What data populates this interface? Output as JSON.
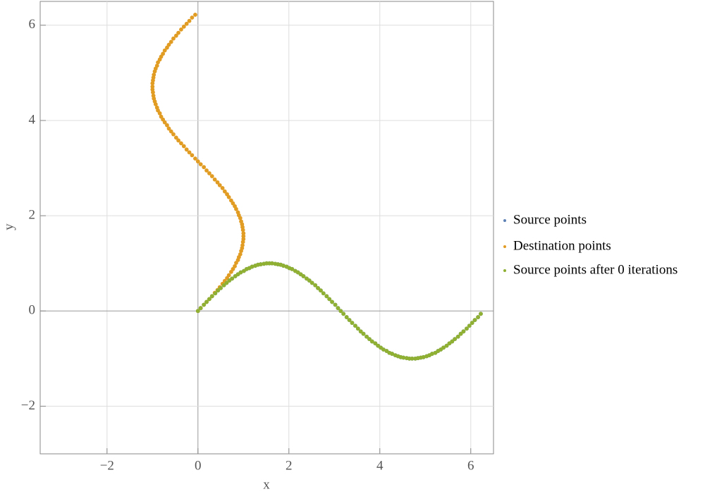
{
  "chart_data": {
    "type": "scatter",
    "xlabel": "x",
    "ylabel": "y",
    "xlim": [
      -3.47,
      6.5
    ],
    "ylim": [
      -3,
      6.5
    ],
    "xticks": [
      {
        "value": -2,
        "label": "−2"
      },
      0,
      2,
      4,
      6
    ],
    "yticks": [
      {
        "value": -2,
        "label": "−2"
      },
      0,
      2,
      4,
      6
    ],
    "grid": true,
    "legend": "right",
    "series": [
      {
        "name": "Source points",
        "color": "#5e81b5",
        "x": [
          0,
          0.06,
          0.13,
          0.19,
          0.25,
          0.31,
          0.38,
          0.44,
          0.5,
          0.57,
          0.63,
          0.69,
          0.75,
          0.82,
          0.88,
          0.94,
          1.01,
          1.07,
          1.13,
          1.19,
          1.26,
          1.32,
          1.38,
          1.45,
          1.51,
          1.57,
          1.63,
          1.7,
          1.76,
          1.82,
          1.88,
          1.95,
          2.01,
          2.07,
          2.14,
          2.2,
          2.26,
          2.32,
          2.39,
          2.45,
          2.51,
          2.58,
          2.64,
          2.7,
          2.76,
          2.83,
          2.89,
          2.95,
          3.02,
          3.08,
          3.14,
          3.2,
          3.27,
          3.33,
          3.39,
          3.46,
          3.52,
          3.58,
          3.64,
          3.71,
          3.77,
          3.83,
          3.9,
          3.96,
          4.02,
          4.08,
          4.15,
          4.21,
          4.27,
          4.34,
          4.4,
          4.46,
          4.52,
          4.59,
          4.65,
          4.71,
          4.78,
          4.84,
          4.9,
          4.96,
          5.03,
          5.09,
          5.15,
          5.22,
          5.28,
          5.34,
          5.4,
          5.47,
          5.53,
          5.59,
          5.65,
          5.72,
          5.78,
          5.84,
          5.91,
          5.97,
          6.03,
          6.09,
          6.16,
          6.22
        ],
        "values": [
          0,
          0.06,
          0.13,
          0.19,
          0.25,
          0.31,
          0.37,
          0.43,
          0.48,
          0.54,
          0.59,
          0.64,
          0.68,
          0.73,
          0.77,
          0.81,
          0.84,
          0.88,
          0.9,
          0.93,
          0.95,
          0.97,
          0.98,
          0.99,
          1,
          1,
          1,
          0.99,
          0.98,
          0.97,
          0.95,
          0.93,
          0.9,
          0.88,
          0.84,
          0.81,
          0.77,
          0.73,
          0.68,
          0.64,
          0.59,
          0.54,
          0.48,
          0.43,
          0.37,
          0.31,
          0.25,
          0.19,
          0.13,
          0.06,
          0,
          -0.06,
          -0.13,
          -0.19,
          -0.25,
          -0.31,
          -0.37,
          -0.43,
          -0.48,
          -0.54,
          -0.59,
          -0.64,
          -0.68,
          -0.73,
          -0.77,
          -0.81,
          -0.84,
          -0.88,
          -0.9,
          -0.93,
          -0.95,
          -0.97,
          -0.98,
          -0.99,
          -1,
          -1,
          -1,
          -0.99,
          -0.98,
          -0.97,
          -0.95,
          -0.93,
          -0.9,
          -0.88,
          -0.84,
          -0.81,
          -0.77,
          -0.73,
          -0.68,
          -0.64,
          -0.59,
          -0.54,
          -0.48,
          -0.43,
          -0.37,
          -0.31,
          -0.25,
          -0.19,
          -0.13,
          -0.06
        ]
      },
      {
        "name": "Destination points",
        "color": "#e19c24",
        "x": [
          0,
          0.06,
          0.13,
          0.19,
          0.25,
          0.31,
          0.37,
          0.43,
          0.48,
          0.54,
          0.59,
          0.64,
          0.68,
          0.73,
          0.77,
          0.81,
          0.84,
          0.88,
          0.9,
          0.93,
          0.95,
          0.97,
          0.98,
          0.99,
          1,
          1,
          1,
          0.99,
          0.98,
          0.97,
          0.95,
          0.93,
          0.9,
          0.88,
          0.84,
          0.81,
          0.77,
          0.73,
          0.68,
          0.64,
          0.59,
          0.54,
          0.48,
          0.43,
          0.37,
          0.31,
          0.25,
          0.19,
          0.13,
          0.06,
          0,
          -0.06,
          -0.13,
          -0.19,
          -0.25,
          -0.31,
          -0.37,
          -0.43,
          -0.48,
          -0.54,
          -0.59,
          -0.64,
          -0.68,
          -0.73,
          -0.77,
          -0.81,
          -0.84,
          -0.88,
          -0.9,
          -0.93,
          -0.95,
          -0.97,
          -0.98,
          -0.99,
          -1,
          -1,
          -1,
          -0.99,
          -0.98,
          -0.97,
          -0.95,
          -0.93,
          -0.9,
          -0.88,
          -0.84,
          -0.81,
          -0.77,
          -0.73,
          -0.68,
          -0.64,
          -0.59,
          -0.54,
          -0.48,
          -0.43,
          -0.37,
          -0.31,
          -0.25,
          -0.19,
          -0.13,
          -0.06
        ],
        "values": [
          0,
          0.06,
          0.13,
          0.19,
          0.25,
          0.31,
          0.38,
          0.44,
          0.5,
          0.57,
          0.63,
          0.69,
          0.75,
          0.82,
          0.88,
          0.94,
          1.01,
          1.07,
          1.13,
          1.19,
          1.26,
          1.32,
          1.38,
          1.45,
          1.51,
          1.57,
          1.63,
          1.7,
          1.76,
          1.82,
          1.88,
          1.95,
          2.01,
          2.07,
          2.14,
          2.2,
          2.26,
          2.32,
          2.39,
          2.45,
          2.51,
          2.58,
          2.64,
          2.7,
          2.76,
          2.83,
          2.89,
          2.95,
          3.02,
          3.08,
          3.14,
          3.2,
          3.27,
          3.33,
          3.39,
          3.46,
          3.52,
          3.58,
          3.64,
          3.71,
          3.77,
          3.83,
          3.9,
          3.96,
          4.02,
          4.08,
          4.15,
          4.21,
          4.27,
          4.34,
          4.4,
          4.46,
          4.52,
          4.59,
          4.65,
          4.71,
          4.78,
          4.84,
          4.9,
          4.96,
          5.03,
          5.09,
          5.15,
          5.22,
          5.28,
          5.34,
          5.4,
          5.47,
          5.53,
          5.59,
          5.65,
          5.72,
          5.78,
          5.84,
          5.91,
          5.97,
          6.03,
          6.09,
          6.16,
          6.22
        ]
      },
      {
        "name": "Source points after 0 iterations",
        "color": "#8fb032",
        "x": [
          0,
          0.06,
          0.13,
          0.19,
          0.25,
          0.31,
          0.38,
          0.44,
          0.5,
          0.57,
          0.63,
          0.69,
          0.75,
          0.82,
          0.88,
          0.94,
          1.01,
          1.07,
          1.13,
          1.19,
          1.26,
          1.32,
          1.38,
          1.45,
          1.51,
          1.57,
          1.63,
          1.7,
          1.76,
          1.82,
          1.88,
          1.95,
          2.01,
          2.07,
          2.14,
          2.2,
          2.26,
          2.32,
          2.39,
          2.45,
          2.51,
          2.58,
          2.64,
          2.7,
          2.76,
          2.83,
          2.89,
          2.95,
          3.02,
          3.08,
          3.14,
          3.2,
          3.27,
          3.33,
          3.39,
          3.46,
          3.52,
          3.58,
          3.64,
          3.71,
          3.77,
          3.83,
          3.9,
          3.96,
          4.02,
          4.08,
          4.15,
          4.21,
          4.27,
          4.34,
          4.4,
          4.46,
          4.52,
          4.59,
          4.65,
          4.71,
          4.78,
          4.84,
          4.9,
          4.96,
          5.03,
          5.09,
          5.15,
          5.22,
          5.28,
          5.34,
          5.4,
          5.47,
          5.53,
          5.59,
          5.65,
          5.72,
          5.78,
          5.84,
          5.91,
          5.97,
          6.03,
          6.09,
          6.16,
          6.22
        ],
        "values": [
          0,
          0.06,
          0.13,
          0.19,
          0.25,
          0.31,
          0.37,
          0.43,
          0.48,
          0.54,
          0.59,
          0.64,
          0.68,
          0.73,
          0.77,
          0.81,
          0.84,
          0.88,
          0.9,
          0.93,
          0.95,
          0.97,
          0.98,
          0.99,
          1,
          1,
          1,
          0.99,
          0.98,
          0.97,
          0.95,
          0.93,
          0.9,
          0.88,
          0.84,
          0.81,
          0.77,
          0.73,
          0.68,
          0.64,
          0.59,
          0.54,
          0.48,
          0.43,
          0.37,
          0.31,
          0.25,
          0.19,
          0.13,
          0.06,
          0,
          -0.06,
          -0.13,
          -0.19,
          -0.25,
          -0.31,
          -0.37,
          -0.43,
          -0.48,
          -0.54,
          -0.59,
          -0.64,
          -0.68,
          -0.73,
          -0.77,
          -0.81,
          -0.84,
          -0.88,
          -0.9,
          -0.93,
          -0.95,
          -0.97,
          -0.98,
          -0.99,
          -1,
          -1,
          -1,
          -0.99,
          -0.98,
          -0.97,
          -0.95,
          -0.93,
          -0.9,
          -0.88,
          -0.84,
          -0.81,
          -0.77,
          -0.73,
          -0.68,
          -0.64,
          -0.59,
          -0.54,
          -0.48,
          -0.43,
          -0.37,
          -0.31,
          -0.25,
          -0.19,
          -0.13,
          -0.06
        ]
      }
    ]
  }
}
